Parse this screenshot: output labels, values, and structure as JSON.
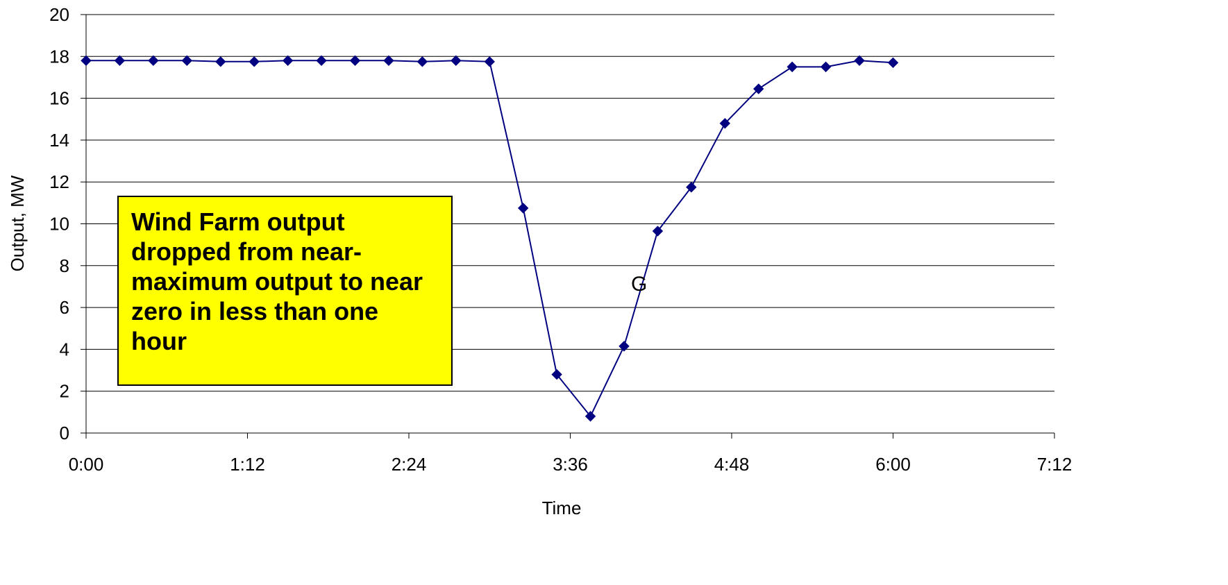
{
  "chart_data": {
    "type": "line",
    "xlabel": "Time",
    "ylabel": "Output, MW",
    "xlim": [
      "0:00",
      "7:12"
    ],
    "ylim": [
      0,
      20
    ],
    "x_ticks": [
      "0:00",
      "1:12",
      "2:24",
      "3:36",
      "4:48",
      "6:00",
      "7:12"
    ],
    "y_ticks": [
      0,
      2,
      4,
      6,
      8,
      10,
      12,
      14,
      16,
      18,
      20
    ],
    "grid": "horizontal",
    "legend": "none",
    "series": [
      {
        "color": "#000080",
        "marker": "diamond",
        "x": [
          "0:00",
          "0:15",
          "0:30",
          "0:45",
          "1:00",
          "1:15",
          "1:30",
          "1:45",
          "2:00",
          "2:15",
          "2:30",
          "2:45",
          "3:00",
          "3:15",
          "3:30",
          "3:45",
          "4:00",
          "4:15",
          "4:30",
          "4:45",
          "5:00",
          "5:15",
          "5:30",
          "5:45",
          "6:00"
        ],
        "y": [
          17.8,
          17.8,
          17.8,
          17.8,
          17.75,
          17.75,
          17.8,
          17.8,
          17.8,
          17.8,
          17.75,
          17.8,
          17.75,
          10.75,
          2.8,
          0.8,
          4.15,
          9.65,
          11.75,
          14.8,
          16.45,
          17.5,
          17.5,
          17.8,
          17.7
        ]
      }
    ],
    "annotations": [
      "Wind Farm output dropped from near-maximum output to near zero in less than one hour",
      "G"
    ]
  },
  "colors": {
    "line": "#000080",
    "note_background": "#ffff00",
    "grid": "#000000"
  }
}
